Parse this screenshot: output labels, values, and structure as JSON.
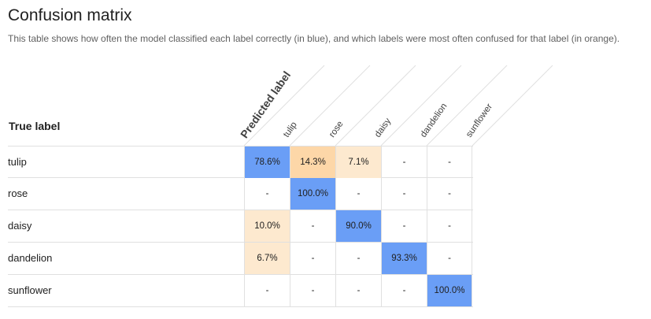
{
  "header": {
    "title": "Confusion matrix",
    "subtitle": "This table shows how often the model classified each label correctly (in blue), and which labels were most often confused for that label (in orange)."
  },
  "axes": {
    "true_label": "True label",
    "predicted_label": "Predicted label"
  },
  "columns": [
    "tulip",
    "rose",
    "daisy",
    "dandelion",
    "sunflower"
  ],
  "rows": [
    {
      "label": "tulip",
      "cells": [
        "78.6%",
        "14.3%",
        "7.1%",
        "-",
        "-"
      ]
    },
    {
      "label": "rose",
      "cells": [
        "-",
        "100.0%",
        "-",
        "-",
        "-"
      ]
    },
    {
      "label": "daisy",
      "cells": [
        "10.0%",
        "-",
        "90.0%",
        "-",
        "-"
      ]
    },
    {
      "label": "dandelion",
      "cells": [
        "6.7%",
        "-",
        "-",
        "93.3%",
        "-"
      ]
    },
    {
      "label": "sunflower",
      "cells": [
        "-",
        "-",
        "-",
        "-",
        "100.0%"
      ]
    }
  ],
  "cell_shading": [
    [
      "blue",
      "orange-strong",
      "orange-light",
      "none",
      "none"
    ],
    [
      "none",
      "blue",
      "none",
      "none",
      "none"
    ],
    [
      "orange-light",
      "none",
      "blue",
      "none",
      "none"
    ],
    [
      "orange-light",
      "none",
      "none",
      "blue",
      "none"
    ],
    [
      "none",
      "none",
      "none",
      "none",
      "blue"
    ]
  ],
  "colors": {
    "correct": "#6a9ef6",
    "confused_strong": "#fdd7a8",
    "confused_light": "#fde9cf",
    "grid_line": "#e0e0e0"
  }
}
